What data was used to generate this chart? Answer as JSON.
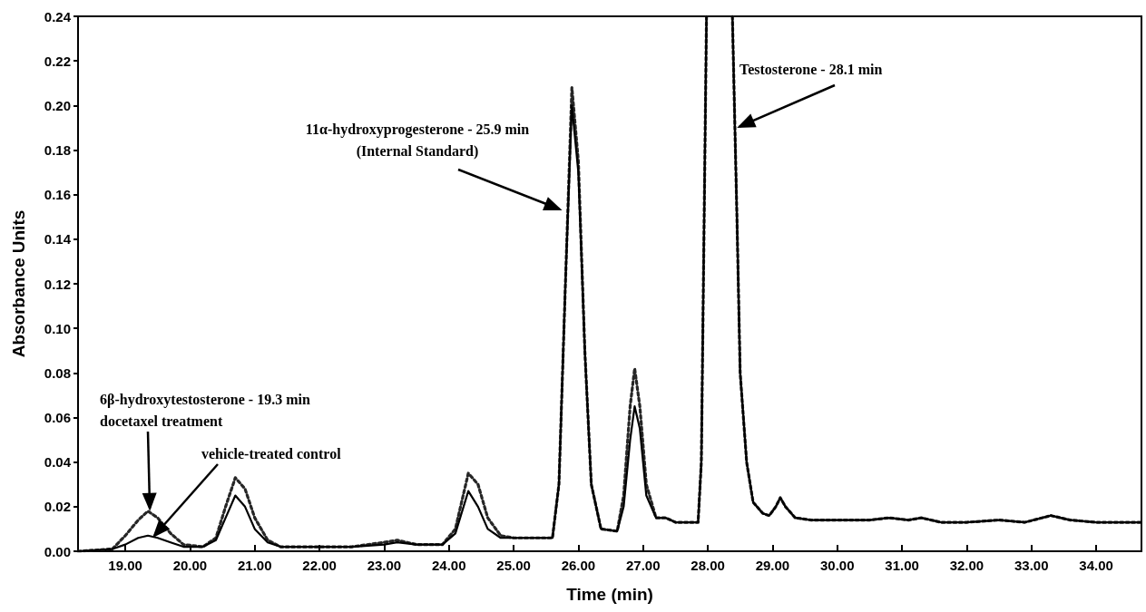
{
  "chart_data": {
    "type": "line",
    "xlabel": "Time (min)",
    "ylabel": "Absorbance Units",
    "annotations": [
      "6β-hydroxytestosterone - 19.3 min",
      {
        "text": "docetaxel treatment",
        "x": 19.38,
        "y": 0.018
      },
      {
        "text": "vehicle-treated control",
        "x": 19.42,
        "y": 0.006
      },
      {
        "text": "11α-hydroxyprogesterone - 25.9 min\n(Internal Standard)",
        "x": 25.75,
        "y": 0.153
      },
      {
        "text": "Testosterone - 28.1 min",
        "x": 28.45,
        "y": 0.19
      }
    ],
    "x": [
      18.27,
      18.8,
      19.0,
      19.2,
      19.35,
      19.5,
      19.7,
      19.9,
      20.2,
      20.4,
      20.55,
      20.7,
      20.85,
      21.0,
      21.2,
      21.4,
      22.0,
      22.5,
      23.0,
      23.2,
      23.5,
      23.9,
      24.1,
      24.3,
      24.45,
      24.6,
      24.8,
      25.0,
      25.6,
      25.7,
      25.8,
      25.9,
      26.0,
      26.1,
      26.2,
      26.35,
      26.6,
      26.7,
      26.8,
      26.87,
      26.95,
      27.05,
      27.2,
      27.35,
      27.5,
      27.85,
      27.9,
      27.98,
      28.1,
      28.38,
      28.45,
      28.5,
      28.6,
      28.7,
      28.85,
      28.95,
      29.05,
      29.12,
      29.2,
      29.35,
      29.6,
      30.0,
      30.5,
      30.8,
      31.1,
      31.3,
      31.6,
      32.0,
      32.5,
      32.9,
      33.3,
      33.6,
      34.0,
      34.7
    ],
    "series": [
      {
        "color": "#262626",
        "line_style": "dotted",
        "values": [
          0,
          0.001,
          0.007,
          0.014,
          0.018,
          0.015,
          0.008,
          0.003,
          0.002,
          0.006,
          0.02,
          0.033,
          0.028,
          0.015,
          0.005,
          0.002,
          0.002,
          0.002,
          0.004,
          0.005,
          0.003,
          0.003,
          0.01,
          0.035,
          0.03,
          0.015,
          0.007,
          0.006,
          0.006,
          0.03,
          0.12,
          0.208,
          0.175,
          0.09,
          0.03,
          0.01,
          0.009,
          0.025,
          0.065,
          0.082,
          0.065,
          0.03,
          0.015,
          0.015,
          0.013,
          0.013,
          0.04,
          0.24,
          null,
          0.24,
          0.15,
          0.08,
          0.04,
          0.022,
          0.017,
          0.016,
          0.02,
          0.024,
          0.02,
          0.015,
          0.014,
          0.014,
          0.014,
          0.015,
          0.014,
          0.015,
          0.013,
          0.013,
          0.014,
          0.013,
          0.016,
          0.014,
          0.013,
          0.013
        ]
      },
      {
        "color": "#000000",
        "line_style": "solid",
        "values": [
          0,
          0.001,
          0.003,
          0.006,
          0.007,
          0.006,
          0.004,
          0.002,
          0.002,
          0.005,
          0.015,
          0.025,
          0.02,
          0.01,
          0.004,
          0.002,
          0.002,
          0.002,
          0.003,
          0.004,
          0.003,
          0.003,
          0.008,
          0.027,
          0.02,
          0.01,
          0.006,
          0.006,
          0.006,
          0.03,
          0.12,
          0.2,
          0.17,
          0.09,
          0.03,
          0.01,
          0.009,
          0.02,
          0.05,
          0.065,
          0.055,
          0.025,
          0.015,
          0.015,
          0.013,
          0.013,
          0.04,
          0.24,
          null,
          0.24,
          0.15,
          0.08,
          0.04,
          0.022,
          0.017,
          0.016,
          0.02,
          0.024,
          0.02,
          0.015,
          0.014,
          0.014,
          0.014,
          0.015,
          0.014,
          0.015,
          0.013,
          0.013,
          0.014,
          0.013,
          0.016,
          0.014,
          0.013,
          0.013
        ]
      }
    ],
    "xlim": [
      18.27,
      34.7
    ],
    "xticks": [
      {
        "value": 19,
        "label": "19.00"
      },
      {
        "value": 20,
        "label": "20.00"
      },
      {
        "value": 21,
        "label": "21.00"
      },
      {
        "value": 22,
        "label": "22.00"
      },
      {
        "value": 23,
        "label": "23.00"
      },
      {
        "value": 24,
        "label": "24.00"
      },
      {
        "value": 25,
        "label": "25.00"
      },
      {
        "value": 26,
        "label": "26.00"
      },
      {
        "value": 27,
        "label": "27.00"
      },
      {
        "value": 28,
        "label": "28.00"
      },
      {
        "value": 29,
        "label": "29.00"
      },
      {
        "value": 30,
        "label": "30.00"
      },
      {
        "value": 31,
        "label": "31.00"
      },
      {
        "value": 32,
        "label": "32.00"
      },
      {
        "value": 33,
        "label": "33.00"
      },
      {
        "value": 34,
        "label": "34.00"
      }
    ],
    "ylim": [
      0,
      0.24
    ],
    "yticks": [
      {
        "value": 0,
        "label": "0.00"
      },
      {
        "value": 0.02,
        "label": "0.02"
      },
      {
        "value": 0.04,
        "label": "0.04"
      },
      {
        "value": 0.06,
        "label": "0.06"
      },
      {
        "value": 0.08,
        "label": "0.08"
      },
      {
        "value": 0.1,
        "label": "0.10"
      },
      {
        "value": 0.12,
        "label": "0.12"
      },
      {
        "value": 0.14,
        "label": "0.14"
      },
      {
        "value": 0.16,
        "label": "0.16"
      },
      {
        "value": 0.18,
        "label": "0.18"
      },
      {
        "value": 0.2,
        "label": "0.20"
      },
      {
        "value": 0.22,
        "label": "0.22"
      },
      {
        "value": 0.24,
        "label": "0.24"
      }
    ],
    "grid": false,
    "marker": "none"
  }
}
